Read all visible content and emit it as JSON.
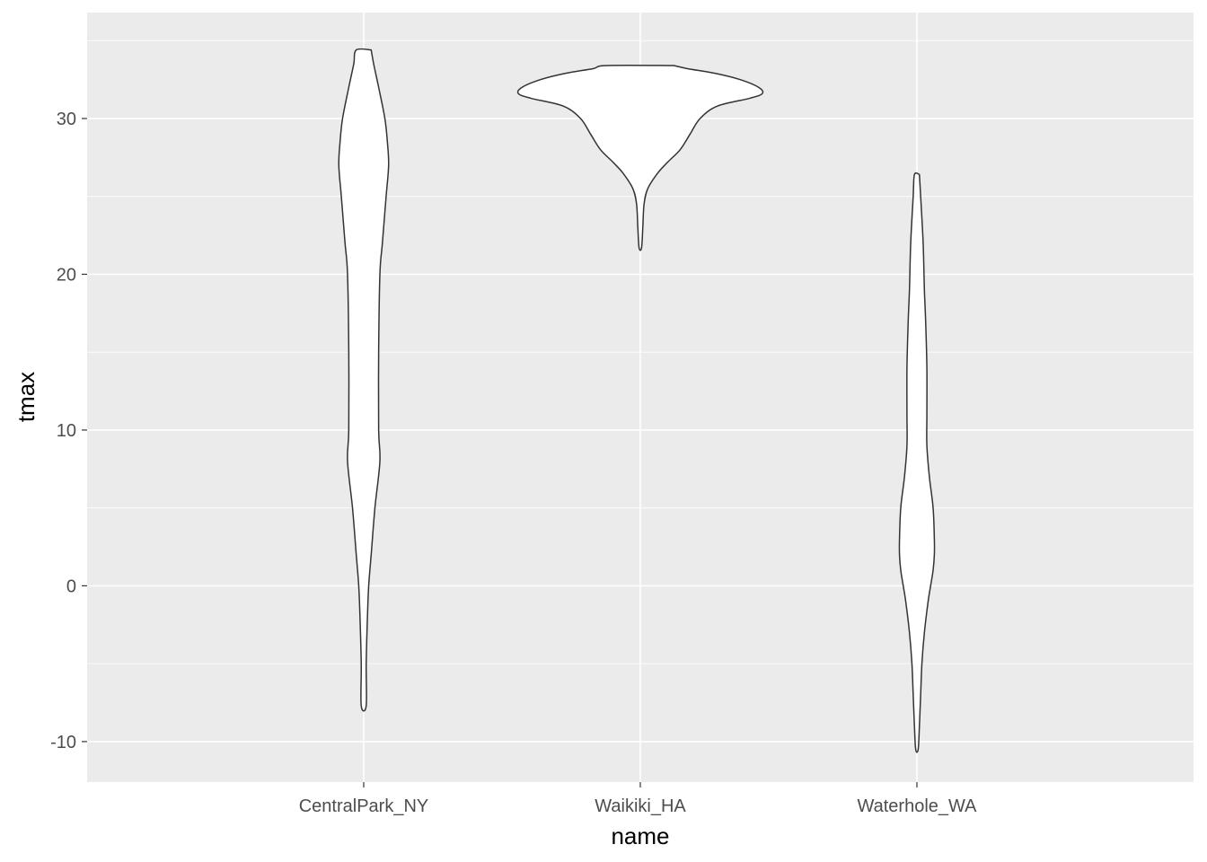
{
  "chart_data": {
    "type": "violin",
    "xlabel": "name",
    "ylabel": "tmax",
    "categories": [
      "CentralPark_NY",
      "Waikiki_HA",
      "Waterhole_WA"
    ],
    "ylim": [
      -12.6,
      36.8
    ],
    "yticks": [
      -10,
      0,
      10,
      20,
      30
    ],
    "ytick_labels": [
      "-10",
      "0",
      "10",
      "20",
      "30"
    ],
    "grid": true,
    "colors": {
      "panel": "#ebebeb",
      "grid": "#ffffff",
      "violin_fill": "#ffffff",
      "violin_stroke": "#333333",
      "tick_text": "#4d4d4d"
    },
    "violins": [
      {
        "category": "CentralPark_NY",
        "range": [
          -7.7,
          34.4
        ],
        "density": [
          [
            34.4,
            0.06
          ],
          [
            33.5,
            0.08
          ],
          [
            32.0,
            0.12
          ],
          [
            30.0,
            0.17
          ],
          [
            28.5,
            0.19
          ],
          [
            27.0,
            0.2
          ],
          [
            25.0,
            0.18
          ],
          [
            22.0,
            0.15
          ],
          [
            20.0,
            0.13
          ],
          [
            15.0,
            0.12
          ],
          [
            10.0,
            0.12
          ],
          [
            8.0,
            0.13
          ],
          [
            5.0,
            0.09
          ],
          [
            2.0,
            0.06
          ],
          [
            0.0,
            0.04
          ],
          [
            -2.0,
            0.03
          ],
          [
            -5.0,
            0.02
          ],
          [
            -7.7,
            0.02
          ]
        ]
      },
      {
        "category": "Waikiki_HA",
        "range": [
          21.7,
          33.4
        ],
        "density": [
          [
            33.4,
            0.27
          ],
          [
            33.2,
            0.38
          ],
          [
            32.9,
            0.6
          ],
          [
            32.5,
            0.8
          ],
          [
            32.0,
            0.95
          ],
          [
            31.6,
            0.98
          ],
          [
            31.3,
            0.88
          ],
          [
            30.8,
            0.62
          ],
          [
            30.0,
            0.48
          ],
          [
            29.0,
            0.4
          ],
          [
            28.0,
            0.32
          ],
          [
            27.2,
            0.22
          ],
          [
            26.5,
            0.14
          ],
          [
            25.5,
            0.06
          ],
          [
            24.5,
            0.03
          ],
          [
            23.0,
            0.02
          ],
          [
            21.7,
            0.01
          ]
        ]
      },
      {
        "category": "Waterhole_WA",
        "range": [
          -10.5,
          26.4
        ],
        "density": [
          [
            26.4,
            0.02
          ],
          [
            25.0,
            0.03
          ],
          [
            22.0,
            0.05
          ],
          [
            19.0,
            0.06
          ],
          [
            17.0,
            0.07
          ],
          [
            14.0,
            0.08
          ],
          [
            11.0,
            0.08
          ],
          [
            9.0,
            0.08
          ],
          [
            7.0,
            0.1
          ],
          [
            5.0,
            0.13
          ],
          [
            3.0,
            0.14
          ],
          [
            2.0,
            0.14
          ],
          [
            1.0,
            0.13
          ],
          [
            0.0,
            0.11
          ],
          [
            -1.0,
            0.09
          ],
          [
            -3.0,
            0.06
          ],
          [
            -5.0,
            0.04
          ],
          [
            -7.0,
            0.03
          ],
          [
            -9.0,
            0.02
          ],
          [
            -10.5,
            0.01
          ]
        ]
      }
    ]
  }
}
